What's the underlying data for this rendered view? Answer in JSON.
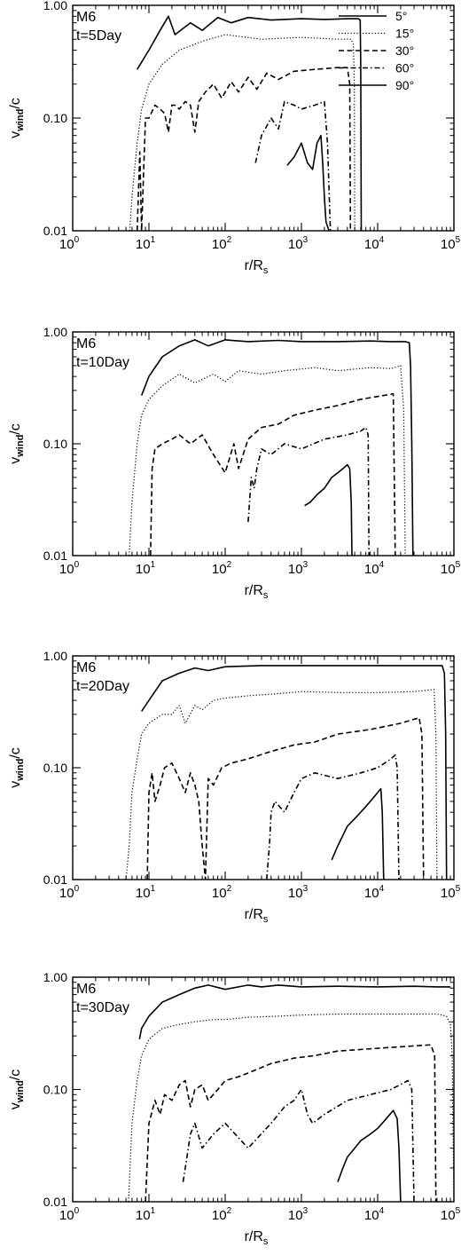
{
  "chart_data": [
    {
      "type": "line",
      "xscale": "log",
      "yscale": "log",
      "xlim": [
        1,
        100000
      ],
      "ylim": [
        0.01,
        1.0
      ],
      "xticks": [
        "10^0",
        "10^1",
        "10^2",
        "10^3",
        "10^4",
        "10^5"
      ],
      "yticks": [
        "1.00",
        "0.10",
        "0.01"
      ],
      "xlabel": "r/R_s",
      "ylabel": "v_wind/c",
      "annotation": [
        "M6",
        "t=5Day"
      ],
      "legend_position": "top-right",
      "legend": [
        "5°",
        "15°",
        "30°",
        "60°",
        "90°"
      ],
      "series": [
        {
          "name": "5°",
          "style": "solid",
          "x": [
            7,
            10,
            14,
            18,
            22,
            35,
            50,
            80,
            120,
            200,
            400,
            1000,
            2000,
            4000,
            5600,
            5900,
            6000,
            6100
          ],
          "y": [
            0.27,
            0.4,
            0.6,
            0.8,
            0.55,
            0.7,
            0.6,
            0.78,
            0.7,
            0.78,
            0.74,
            0.76,
            0.75,
            0.76,
            0.76,
            0.74,
            0.3,
            0.01
          ]
        },
        {
          "name": "15°",
          "style": "dotted",
          "x": [
            5.6,
            6,
            7,
            8,
            10,
            15,
            25,
            50,
            100,
            300,
            1000,
            3000,
            4500,
            4800,
            4950,
            5000
          ],
          "y": [
            0.01,
            0.02,
            0.06,
            0.12,
            0.2,
            0.3,
            0.4,
            0.48,
            0.55,
            0.5,
            0.52,
            0.5,
            0.5,
            0.45,
            0.2,
            0.01
          ]
        },
        {
          "name": "30°",
          "style": "dashed",
          "x": [
            7,
            7.6,
            8,
            9,
            10,
            12,
            14,
            16,
            18,
            20,
            22,
            25,
            30,
            35,
            40,
            45,
            55,
            70,
            90,
            120,
            150,
            200,
            260,
            350,
            500,
            800,
            1500,
            3000,
            4000,
            4300,
            4400
          ],
          "y": [
            0.01,
            0.05,
            0.01,
            0.1,
            0.1,
            0.13,
            0.12,
            0.11,
            0.075,
            0.13,
            0.13,
            0.12,
            0.14,
            0.13,
            0.075,
            0.14,
            0.17,
            0.2,
            0.15,
            0.21,
            0.17,
            0.23,
            0.18,
            0.25,
            0.22,
            0.26,
            0.27,
            0.28,
            0.28,
            0.2,
            0.01
          ]
        },
        {
          "name": "60°",
          "style": "dash-dot",
          "x": [
            250,
            300,
            400,
            500,
            600,
            800,
            1000,
            1500,
            2000,
            2200,
            2400
          ],
          "y": [
            0.04,
            0.07,
            0.1,
            0.08,
            0.14,
            0.13,
            0.12,
            0.13,
            0.14,
            0.06,
            0.01
          ]
        },
        {
          "name": "90°",
          "style": "solid",
          "x": [
            650,
            800,
            1000,
            1200,
            1400,
            1600,
            1800,
            1900,
            2000,
            2100,
            2300
          ],
          "y": [
            0.038,
            0.045,
            0.06,
            0.04,
            0.035,
            0.06,
            0.07,
            0.04,
            0.02,
            0.012,
            0.01
          ]
        }
      ]
    },
    {
      "type": "line",
      "xscale": "log",
      "yscale": "log",
      "xlim": [
        1,
        100000
      ],
      "ylim": [
        0.01,
        1.0
      ],
      "xticks": [
        "10^0",
        "10^1",
        "10^2",
        "10^3",
        "10^4",
        "10^5"
      ],
      "yticks": [
        "1.00",
        "0.10",
        "0.01"
      ],
      "xlabel": "r/R_s",
      "ylabel": "v_wind/c",
      "annotation": [
        "M6",
        "t=10Day"
      ],
      "series": [
        {
          "name": "5°",
          "style": "solid",
          "x": [
            8,
            10,
            15,
            25,
            40,
            60,
            100,
            200,
            500,
            1000,
            3000,
            8000,
            15000,
            23000,
            26000,
            27000,
            28000,
            29000
          ],
          "y": [
            0.27,
            0.4,
            0.6,
            0.75,
            0.85,
            0.75,
            0.85,
            0.82,
            0.84,
            0.82,
            0.82,
            0.83,
            0.82,
            0.82,
            0.8,
            0.5,
            0.1,
            0.01
          ]
        },
        {
          "name": "15°",
          "style": "dotted",
          "x": [
            5.5,
            6,
            7,
            8,
            10,
            15,
            25,
            40,
            70,
            100,
            150,
            300,
            600,
            1500,
            3000,
            8000,
            15000,
            20000,
            22000,
            23000
          ],
          "y": [
            0.01,
            0.03,
            0.1,
            0.18,
            0.25,
            0.33,
            0.42,
            0.35,
            0.42,
            0.36,
            0.45,
            0.42,
            0.45,
            0.48,
            0.45,
            0.48,
            0.47,
            0.5,
            0.2,
            0.01
          ]
        },
        {
          "name": "30°",
          "style": "dashed",
          "x": [
            10.5,
            11,
            12,
            15,
            20,
            25,
            35,
            50,
            70,
            100,
            130,
            150,
            200,
            300,
            500,
            800,
            1500,
            3000,
            6000,
            12000,
            16000,
            17000
          ],
          "y": [
            0.01,
            0.06,
            0.09,
            0.1,
            0.11,
            0.12,
            0.1,
            0.12,
            0.08,
            0.055,
            0.1,
            0.06,
            0.11,
            0.14,
            0.15,
            0.18,
            0.2,
            0.22,
            0.25,
            0.27,
            0.28,
            0.01
          ]
        },
        {
          "name": "60°",
          "style": "dash-dot",
          "x": [
            200,
            220,
            240,
            260,
            300,
            400,
            600,
            1000,
            2000,
            4000,
            6000,
            7000,
            7500,
            7700
          ],
          "y": [
            0.02,
            0.05,
            0.04,
            0.06,
            0.09,
            0.08,
            0.1,
            0.09,
            0.11,
            0.12,
            0.13,
            0.14,
            0.12,
            0.01
          ]
        },
        {
          "name": "90°",
          "style": "solid",
          "x": [
            1100,
            1300,
            1600,
            2000,
            2500,
            3000,
            3500,
            4000,
            4300,
            4500,
            4600
          ],
          "y": [
            0.028,
            0.03,
            0.035,
            0.04,
            0.05,
            0.055,
            0.06,
            0.065,
            0.06,
            0.03,
            0.01
          ]
        }
      ]
    },
    {
      "type": "line",
      "xscale": "log",
      "yscale": "log",
      "xlim": [
        1,
        100000
      ],
      "ylim": [
        0.01,
        1.0
      ],
      "xticks": [
        "10^0",
        "10^1",
        "10^2",
        "10^3",
        "10^4",
        "10^5"
      ],
      "yticks": [
        "1.00",
        "0.10",
        "0.01"
      ],
      "xlabel": "r/R_s",
      "ylabel": "v_wind/c",
      "annotation": [
        "M6",
        "t=20Day"
      ],
      "series": [
        {
          "name": "5°",
          "style": "solid",
          "x": [
            8,
            10,
            15,
            25,
            40,
            60,
            100,
            300,
            1000,
            3000,
            10000,
            40000,
            70000,
            75000,
            78000,
            80000
          ],
          "y": [
            0.32,
            0.4,
            0.6,
            0.7,
            0.78,
            0.74,
            0.8,
            0.82,
            0.82,
            0.82,
            0.82,
            0.82,
            0.82,
            0.7,
            0.2,
            0.01
          ]
        },
        {
          "name": "15°",
          "style": "dotted",
          "x": [
            5,
            5.5,
            6,
            7,
            8,
            10,
            15,
            20,
            25,
            30,
            40,
            50,
            70,
            100,
            200,
            500,
            1000,
            3000,
            10000,
            30000,
            55000,
            58000,
            60000
          ],
          "y": [
            0.01,
            0.02,
            0.06,
            0.12,
            0.2,
            0.25,
            0.3,
            0.3,
            0.36,
            0.25,
            0.36,
            0.33,
            0.4,
            0.42,
            0.44,
            0.46,
            0.48,
            0.47,
            0.47,
            0.48,
            0.5,
            0.2,
            0.01
          ]
        },
        {
          "name": "30°",
          "style": "dashed",
          "x": [
            9.5,
            10,
            11,
            12,
            14,
            16,
            20,
            25,
            30,
            35,
            40,
            45,
            50,
            55,
            60,
            70,
            90,
            120,
            200,
            400,
            800,
            1500,
            3000,
            8000,
            20000,
            35000,
            38000,
            40000
          ],
          "y": [
            0.01,
            0.06,
            0.09,
            0.05,
            0.07,
            0.1,
            0.11,
            0.08,
            0.06,
            0.09,
            0.07,
            0.05,
            0.02,
            0.01,
            0.08,
            0.07,
            0.1,
            0.11,
            0.12,
            0.14,
            0.16,
            0.17,
            0.2,
            0.22,
            0.25,
            0.28,
            0.2,
            0.01
          ]
        },
        {
          "name": "60°",
          "style": "dash-dot",
          "x": [
            350,
            380,
            400,
            450,
            600,
            800,
            1000,
            1500,
            3000,
            6000,
            10000,
            15000,
            17000,
            18000,
            19000
          ],
          "y": [
            0.01,
            0.02,
            0.04,
            0.05,
            0.04,
            0.06,
            0.08,
            0.09,
            0.08,
            0.09,
            0.1,
            0.12,
            0.13,
            0.1,
            0.01
          ]
        },
        {
          "name": "90°",
          "style": "solid",
          "x": [
            2500,
            3000,
            4000,
            5000,
            6000,
            7000,
            8000,
            9000,
            10000,
            11000,
            11500,
            12000
          ],
          "y": [
            0.015,
            0.02,
            0.03,
            0.035,
            0.04,
            0.045,
            0.05,
            0.055,
            0.06,
            0.065,
            0.04,
            0.01
          ]
        }
      ]
    },
    {
      "type": "line",
      "xscale": "log",
      "yscale": "log",
      "xlim": [
        1,
        100000
      ],
      "ylim": [
        0.01,
        1.0
      ],
      "xticks": [
        "10^0",
        "10^1",
        "10^2",
        "10^3",
        "10^4",
        "10^5"
      ],
      "yticks": [
        "1.00",
        "0.10",
        "0.01"
      ],
      "xlabel": "r/R_s",
      "ylabel": "v_wind/c",
      "annotation": [
        "M6",
        "t=30Day"
      ],
      "series": [
        {
          "name": "5°",
          "style": "solid",
          "x": [
            7.5,
            8,
            10,
            15,
            25,
            40,
            60,
            100,
            200,
            300,
            500,
            1000,
            3000,
            10000,
            30000,
            60000,
            90000
          ],
          "y": [
            0.28,
            0.35,
            0.45,
            0.6,
            0.7,
            0.8,
            0.85,
            0.78,
            0.85,
            0.82,
            0.85,
            0.82,
            0.83,
            0.82,
            0.83,
            0.82,
            0.82
          ]
        },
        {
          "name": "15°",
          "style": "dotted",
          "x": [
            5.4,
            6,
            7,
            8,
            10,
            15,
            25,
            40,
            70,
            100,
            200,
            500,
            1000,
            3000,
            10000,
            30000,
            60000,
            80000,
            90000,
            95000,
            100000
          ],
          "y": [
            0.01,
            0.05,
            0.12,
            0.2,
            0.28,
            0.35,
            0.38,
            0.4,
            0.42,
            0.42,
            0.44,
            0.45,
            0.46,
            0.47,
            0.47,
            0.47,
            0.47,
            0.45,
            0.38,
            0.2,
            0.01
          ]
        },
        {
          "name": "30°",
          "style": "dashed",
          "x": [
            9,
            10,
            12,
            14,
            16,
            20,
            25,
            30,
            35,
            40,
            50,
            60,
            80,
            100,
            150,
            200,
            400,
            800,
            1500,
            3000,
            8000,
            20000,
            50000,
            56000,
            58000
          ],
          "y": [
            0.01,
            0.05,
            0.08,
            0.06,
            0.09,
            0.08,
            0.11,
            0.12,
            0.07,
            0.1,
            0.11,
            0.08,
            0.1,
            0.12,
            0.13,
            0.14,
            0.17,
            0.19,
            0.2,
            0.22,
            0.23,
            0.24,
            0.25,
            0.2,
            0.01
          ]
        },
        {
          "name": "60°",
          "style": "dash-dot",
          "x": [
            28,
            30,
            35,
            40,
            50,
            70,
            100,
            200,
            400,
            600,
            800,
            1000,
            1200,
            1400,
            2000,
            4000,
            8000,
            15000,
            25000,
            28000,
            30000
          ],
          "y": [
            0.015,
            0.02,
            0.04,
            0.05,
            0.03,
            0.04,
            0.05,
            0.03,
            0.05,
            0.07,
            0.08,
            0.1,
            0.06,
            0.05,
            0.06,
            0.08,
            0.09,
            0.1,
            0.12,
            0.1,
            0.01
          ]
        },
        {
          "name": "90°",
          "style": "solid",
          "x": [
            3000,
            3500,
            4000,
            5000,
            6000,
            8000,
            10000,
            13000,
            16000,
            18000,
            19000,
            20000
          ],
          "y": [
            0.015,
            0.02,
            0.025,
            0.03,
            0.035,
            0.04,
            0.045,
            0.055,
            0.065,
            0.055,
            0.03,
            0.01
          ]
        }
      ]
    }
  ]
}
